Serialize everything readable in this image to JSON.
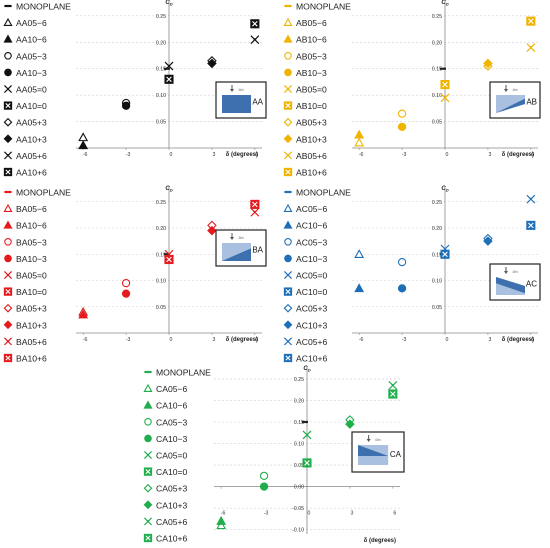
{
  "figure": {
    "panels": [
      {
        "id": "AA",
        "badge": "AA",
        "color": "#111111",
        "fill": "#3e6fae",
        "y_axis_label": "C_D",
        "x_axis_label": "δ (degrees)",
        "x_ticks": [
          "-6",
          "-3",
          "0",
          "3",
          "6"
        ],
        "y_ticks": [
          "0.05",
          "0.10",
          "0.15",
          "0.20",
          "0.25"
        ],
        "legend": [
          {
            "label": "MONOPLANE",
            "marker": "dash"
          },
          {
            "label": "AA05−6",
            "marker": "triangle-open"
          },
          {
            "label": "AA10−6",
            "marker": "triangle"
          },
          {
            "label": "AA05−3",
            "marker": "circle-open"
          },
          {
            "label": "AA10−3",
            "marker": "circle"
          },
          {
            "label": "AA05=0",
            "marker": "x"
          },
          {
            "label": "AA10=0",
            "marker": "boxx"
          },
          {
            "label": "AA05+3",
            "marker": "diamond-open"
          },
          {
            "label": "AA10+3",
            "marker": "diamond"
          },
          {
            "label": "AA05+6",
            "marker": "star"
          },
          {
            "label": "AA10+6",
            "marker": "boxx"
          }
        ]
      },
      {
        "id": "AB",
        "badge": "AB",
        "color": "#f0b400",
        "fill": "#3e6fae",
        "y_axis_label": "C_D",
        "x_axis_label": "δ (degrees)",
        "x_ticks": [
          "-6",
          "-3",
          "0",
          "3",
          "6"
        ],
        "y_ticks": [
          "0.05",
          "0.10",
          "0.15",
          "0.20",
          "0.25"
        ],
        "legend": [
          {
            "label": "MONOPLANE",
            "marker": "dash"
          },
          {
            "label": "AB05−6",
            "marker": "triangle-open"
          },
          {
            "label": "AB10−6",
            "marker": "triangle"
          },
          {
            "label": "AB05−3",
            "marker": "circle-open"
          },
          {
            "label": "AB10−3",
            "marker": "circle"
          },
          {
            "label": "AB05=0",
            "marker": "x"
          },
          {
            "label": "AB10=0",
            "marker": "boxx"
          },
          {
            "label": "AB05+3",
            "marker": "diamond-open"
          },
          {
            "label": "AB10+3",
            "marker": "diamond"
          },
          {
            "label": "AB05+6",
            "marker": "star"
          },
          {
            "label": "AB10+6",
            "marker": "boxx"
          }
        ]
      },
      {
        "id": "BA",
        "badge": "BA",
        "color": "#e41a1c",
        "fill": "#3e6fae",
        "y_axis_label": "C_D",
        "x_axis_label": "δ (degrees)",
        "x_ticks": [
          "-6",
          "-3",
          "0",
          "3",
          "6"
        ],
        "y_ticks": [
          "0.05",
          "0.10",
          "0.15",
          "0.20",
          "0.25"
        ],
        "legend": [
          {
            "label": "MONOPLANE",
            "marker": "dash"
          },
          {
            "label": "BA05−6",
            "marker": "triangle-open"
          },
          {
            "label": "BA10−6",
            "marker": "triangle"
          },
          {
            "label": "BA05−3",
            "marker": "circle-open"
          },
          {
            "label": "BA10−3",
            "marker": "circle"
          },
          {
            "label": "BA05=0",
            "marker": "x"
          },
          {
            "label": "BA10=0",
            "marker": "boxx"
          },
          {
            "label": "BA05+3",
            "marker": "diamond-open"
          },
          {
            "label": "BA10+3",
            "marker": "diamond"
          },
          {
            "label": "BA05+6",
            "marker": "star"
          },
          {
            "label": "BA10+6",
            "marker": "boxx"
          }
        ]
      },
      {
        "id": "AC",
        "badge": "AC",
        "color": "#1f6fb8",
        "fill": "#3e6fae",
        "y_axis_label": "C_D",
        "x_axis_label": "δ (degrees)",
        "x_ticks": [
          "-6",
          "-3",
          "0",
          "3",
          "6"
        ],
        "y_ticks": [
          "0.05",
          "0.10",
          "0.15",
          "0.20",
          "0.25"
        ],
        "legend": [
          {
            "label": "MONOPLANE",
            "marker": "dash"
          },
          {
            "label": "AC05−6",
            "marker": "triangle-open"
          },
          {
            "label": "AC10−6",
            "marker": "triangle"
          },
          {
            "label": "AC05−3",
            "marker": "circle-open"
          },
          {
            "label": "AC10−3",
            "marker": "circle"
          },
          {
            "label": "AC05=0",
            "marker": "x"
          },
          {
            "label": "AC10=0",
            "marker": "boxx"
          },
          {
            "label": "AC05+3",
            "marker": "diamond-open"
          },
          {
            "label": "AC10+3",
            "marker": "diamond"
          },
          {
            "label": "AC05+6",
            "marker": "star"
          },
          {
            "label": "AC10+6",
            "marker": "boxx"
          }
        ]
      },
      {
        "id": "CA",
        "badge": "CA",
        "color": "#1fae4b",
        "fill": "#3e6fae",
        "y_axis_label": "C_D",
        "x_axis_label": "δ (degrees)",
        "x_ticks": [
          "-6",
          "-3",
          "0",
          "3",
          "6"
        ],
        "y_ticks": [
          "-0.10",
          "-0.05",
          "0.00",
          "0.05",
          "0.10",
          "0.15",
          "0.20",
          "0.25"
        ],
        "legend": [
          {
            "label": "MONOPLANE",
            "marker": "dash"
          },
          {
            "label": "CA05−6",
            "marker": "triangle-open"
          },
          {
            "label": "CA10−6",
            "marker": "triangle"
          },
          {
            "label": "CA05−3",
            "marker": "circle-open"
          },
          {
            "label": "CA10−3",
            "marker": "circle"
          },
          {
            "label": "CA05=0",
            "marker": "x"
          },
          {
            "label": "CA10=0",
            "marker": "boxx"
          },
          {
            "label": "CA05+3",
            "marker": "diamond-open"
          },
          {
            "label": "CA10+3",
            "marker": "diamond"
          },
          {
            "label": "CA05+6",
            "marker": "star"
          },
          {
            "label": "CA10+6",
            "marker": "boxx"
          }
        ]
      }
    ]
  },
  "chart_data": [
    {
      "type": "scatter",
      "panel": "AA",
      "xlabel": "δ (degrees)",
      "ylabel": "C_D",
      "xlim": [
        -6.5,
        6.5
      ],
      "ylim": [
        0,
        0.28
      ],
      "monoplane": 0.15,
      "series": [
        {
          "name": "MONOPLANE",
          "marker": "dash",
          "x": [
            0
          ],
          "y": [
            0.15
          ]
        },
        {
          "name": "AA05−6",
          "marker": "triangle-open",
          "x": [
            -6
          ],
          "y": [
            0.02
          ]
        },
        {
          "name": "AA10−6",
          "marker": "triangle",
          "x": [
            -6
          ],
          "y": [
            0.005
          ]
        },
        {
          "name": "AA05−3",
          "marker": "circle-open",
          "x": [
            -3
          ],
          "y": [
            0.085
          ]
        },
        {
          "name": "AA10−3",
          "marker": "circle",
          "x": [
            -3
          ],
          "y": [
            0.08
          ]
        },
        {
          "name": "AA05=0",
          "marker": "x",
          "x": [
            0
          ],
          "y": [
            0.155
          ]
        },
        {
          "name": "AA10=0",
          "marker": "boxx",
          "x": [
            0
          ],
          "y": [
            0.13
          ]
        },
        {
          "name": "AA05+3",
          "marker": "diamond-open",
          "x": [
            3
          ],
          "y": [
            0.165
          ]
        },
        {
          "name": "AA10+3",
          "marker": "diamond",
          "x": [
            3
          ],
          "y": [
            0.16
          ]
        },
        {
          "name": "AA05+6",
          "marker": "star",
          "x": [
            6
          ],
          "y": [
            0.205
          ]
        },
        {
          "name": "AA10+6",
          "marker": "boxx",
          "x": [
            6
          ],
          "y": [
            0.235
          ]
        }
      ]
    },
    {
      "type": "scatter",
      "panel": "AB",
      "xlabel": "δ (degrees)",
      "ylabel": "C_D",
      "xlim": [
        -6.5,
        6.5
      ],
      "ylim": [
        0,
        0.28
      ],
      "monoplane": 0.15,
      "series": [
        {
          "name": "MONOPLANE",
          "marker": "dash",
          "x": [
            0
          ],
          "y": [
            0.15
          ]
        },
        {
          "name": "AB05−6",
          "marker": "triangle-open",
          "x": [
            -6
          ],
          "y": [
            0.01
          ]
        },
        {
          "name": "AB10−6",
          "marker": "triangle",
          "x": [
            -6
          ],
          "y": [
            0.025
          ]
        },
        {
          "name": "AB05−3",
          "marker": "circle-open",
          "x": [
            -3
          ],
          "y": [
            0.065
          ]
        },
        {
          "name": "AB10−3",
          "marker": "circle",
          "x": [
            -3
          ],
          "y": [
            0.04
          ]
        },
        {
          "name": "AB05=0",
          "marker": "x",
          "x": [
            0
          ],
          "y": [
            0.095
          ]
        },
        {
          "name": "AB10=0",
          "marker": "boxx",
          "x": [
            0
          ],
          "y": [
            0.12
          ]
        },
        {
          "name": "AB05+3",
          "marker": "diamond-open",
          "x": [
            3
          ],
          "y": [
            0.155
          ]
        },
        {
          "name": "AB10+3",
          "marker": "diamond",
          "x": [
            3
          ],
          "y": [
            0.16
          ]
        },
        {
          "name": "AB05+6",
          "marker": "star",
          "x": [
            6
          ],
          "y": [
            0.19
          ]
        },
        {
          "name": "AB10+6",
          "marker": "boxx",
          "x": [
            6
          ],
          "y": [
            0.24
          ]
        }
      ]
    },
    {
      "type": "scatter",
      "panel": "BA",
      "xlabel": "δ (degrees)",
      "ylabel": "C_D",
      "xlim": [
        -6.5,
        6.5
      ],
      "ylim": [
        0,
        0.28
      ],
      "monoplane": 0.15,
      "series": [
        {
          "name": "MONOPLANE",
          "marker": "dash",
          "x": [
            0
          ],
          "y": [
            0.15
          ]
        },
        {
          "name": "BA05−6",
          "marker": "triangle-open",
          "x": [
            -6
          ],
          "y": [
            0.04
          ]
        },
        {
          "name": "BA10−6",
          "marker": "triangle",
          "x": [
            -6
          ],
          "y": [
            0.035
          ]
        },
        {
          "name": "BA05−3",
          "marker": "circle-open",
          "x": [
            -3
          ],
          "y": [
            0.095
          ]
        },
        {
          "name": "BA10−3",
          "marker": "circle",
          "x": [
            -3
          ],
          "y": [
            0.075
          ]
        },
        {
          "name": "BA05=0",
          "marker": "x",
          "x": [
            0
          ],
          "y": [
            0.15
          ]
        },
        {
          "name": "BA10=0",
          "marker": "boxx",
          "x": [
            0
          ],
          "y": [
            0.14
          ]
        },
        {
          "name": "BA05+3",
          "marker": "diamond-open",
          "x": [
            3
          ],
          "y": [
            0.205
          ]
        },
        {
          "name": "BA10+3",
          "marker": "diamond",
          "x": [
            3
          ],
          "y": [
            0.195
          ]
        },
        {
          "name": "BA05+6",
          "marker": "star",
          "x": [
            6
          ],
          "y": [
            0.23
          ]
        },
        {
          "name": "BA10+6",
          "marker": "boxx",
          "x": [
            6
          ],
          "y": [
            0.245
          ]
        }
      ]
    },
    {
      "type": "scatter",
      "panel": "AC",
      "xlabel": "δ (degrees)",
      "ylabel": "C_D",
      "xlim": [
        -6.5,
        6.5
      ],
      "ylim": [
        0,
        0.28
      ],
      "monoplane": 0.15,
      "series": [
        {
          "name": "MONOPLANE",
          "marker": "dash",
          "x": [
            0
          ],
          "y": [
            0.15
          ]
        },
        {
          "name": "AC05−6",
          "marker": "triangle-open",
          "x": [
            -6
          ],
          "y": [
            0.15
          ]
        },
        {
          "name": "AC10−6",
          "marker": "triangle",
          "x": [
            -6
          ],
          "y": [
            0.085
          ]
        },
        {
          "name": "AC05−3",
          "marker": "circle-open",
          "x": [
            -3
          ],
          "y": [
            0.135
          ]
        },
        {
          "name": "AC10−3",
          "marker": "circle",
          "x": [
            -3
          ],
          "y": [
            0.085
          ]
        },
        {
          "name": "AC05=0",
          "marker": "x",
          "x": [
            0
          ],
          "y": [
            0.16
          ]
        },
        {
          "name": "AC10=0",
          "marker": "boxx",
          "x": [
            0
          ],
          "y": [
            0.15
          ]
        },
        {
          "name": "AC05+3",
          "marker": "diamond-open",
          "x": [
            3
          ],
          "y": [
            0.18
          ]
        },
        {
          "name": "AC10+3",
          "marker": "diamond",
          "x": [
            3
          ],
          "y": [
            0.175
          ]
        },
        {
          "name": "AC05+6",
          "marker": "star",
          "x": [
            6
          ],
          "y": [
            0.255
          ]
        },
        {
          "name": "AC10+6",
          "marker": "boxx",
          "x": [
            6
          ],
          "y": [
            0.205
          ]
        }
      ]
    },
    {
      "type": "scatter",
      "panel": "CA",
      "xlabel": "δ (degrees)",
      "ylabel": "C_D",
      "xlim": [
        -6.5,
        6.5
      ],
      "ylim": [
        -0.11,
        0.28
      ],
      "monoplane": 0.15,
      "series": [
        {
          "name": "MONOPLANE",
          "marker": "dash",
          "x": [
            0
          ],
          "y": [
            0.15
          ]
        },
        {
          "name": "CA05−6",
          "marker": "triangle-open",
          "x": [
            -6
          ],
          "y": [
            -0.09
          ]
        },
        {
          "name": "CA10−6",
          "marker": "triangle",
          "x": [
            -6
          ],
          "y": [
            -0.08
          ]
        },
        {
          "name": "CA05−3",
          "marker": "circle-open",
          "x": [
            -3
          ],
          "y": [
            0.025
          ]
        },
        {
          "name": "CA10−3",
          "marker": "circle",
          "x": [
            -3
          ],
          "y": [
            0.0
          ]
        },
        {
          "name": "CA05=0",
          "marker": "x",
          "x": [
            0
          ],
          "y": [
            0.12
          ]
        },
        {
          "name": "CA10=0",
          "marker": "boxx",
          "x": [
            0
          ],
          "y": [
            0.055
          ]
        },
        {
          "name": "CA05+3",
          "marker": "diamond-open",
          "x": [
            3
          ],
          "y": [
            0.155
          ]
        },
        {
          "name": "CA10+3",
          "marker": "diamond",
          "x": [
            3
          ],
          "y": [
            0.145
          ]
        },
        {
          "name": "CA05+6",
          "marker": "star",
          "x": [
            6
          ],
          "y": [
            0.235
          ]
        },
        {
          "name": "CA10+6",
          "marker": "boxx",
          "x": [
            6
          ],
          "y": [
            0.215
          ]
        }
      ]
    }
  ]
}
